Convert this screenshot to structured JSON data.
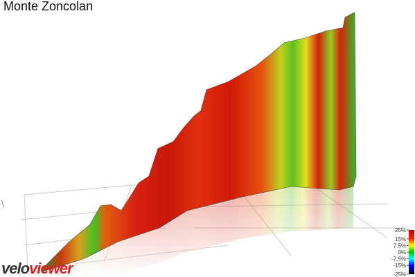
{
  "header": {
    "title": "Monte Zoncolan"
  },
  "color_scale": {
    "ylim": [
      -25,
      25
    ],
    "ticks": [
      {
        "value": 25,
        "label": "25%"
      },
      {
        "value": 15,
        "label": "15%"
      },
      {
        "value": 7.5,
        "label": "7.5%"
      },
      {
        "value": 0,
        "label": "0%"
      },
      {
        "value": -7.5,
        "label": "-7.5%"
      },
      {
        "value": -15,
        "label": "-15%"
      },
      {
        "value": -25,
        "label": "-25%"
      }
    ]
  },
  "logo": {
    "part1": "velo",
    "part2": "viewer"
  }
}
